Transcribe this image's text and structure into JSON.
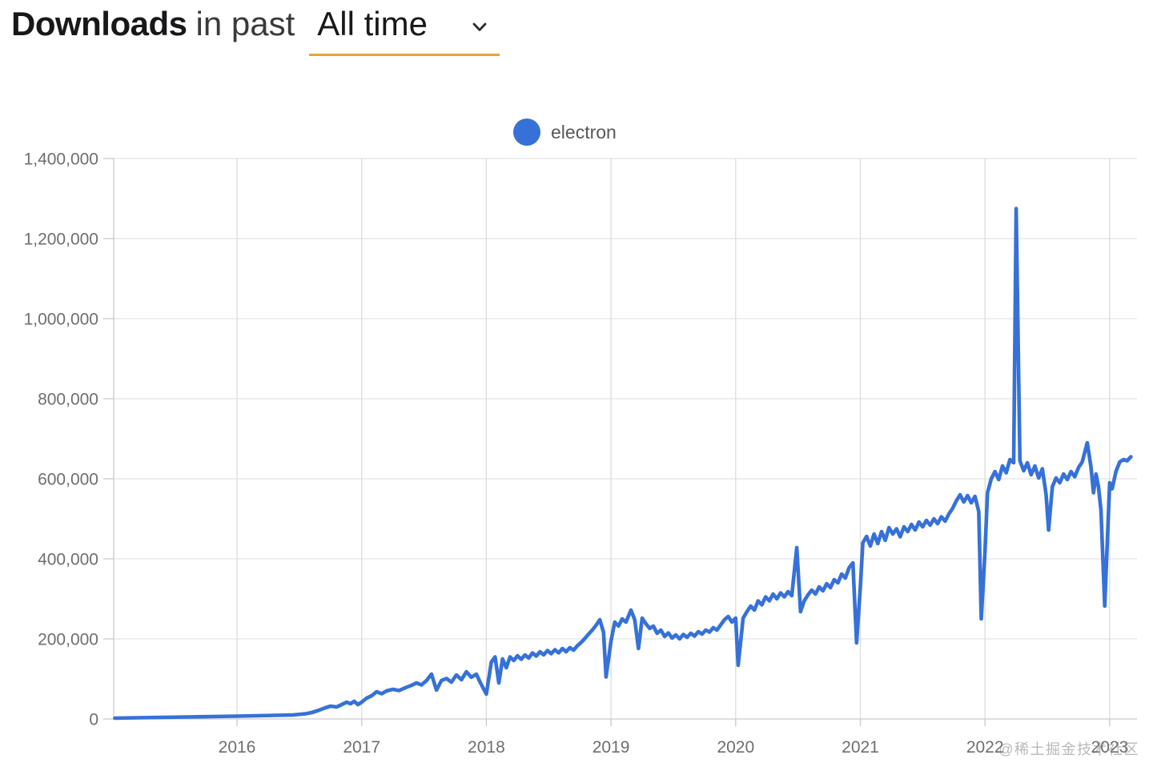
{
  "header": {
    "title_bold": "Downloads",
    "title_mid": "in past",
    "range_value": "All time",
    "underline_color": "#e7a33c"
  },
  "legend": {
    "items": [
      {
        "label": "electron",
        "color": "#3671d8"
      }
    ]
  },
  "watermark": {
    "text": "@稀土掘金技术社区"
  },
  "chart_data": {
    "type": "line",
    "title": "Downloads in past All time",
    "xlabel": "",
    "ylabel": "",
    "x_unit": "year",
    "y_unit": "downloads",
    "xlim": [
      2015.0,
      2023.25
    ],
    "ylim": [
      0,
      1400000
    ],
    "grid": true,
    "legend_position": "top-center",
    "x_ticks": [
      {
        "value": 2016,
        "label": "2016"
      },
      {
        "value": 2017,
        "label": "2017"
      },
      {
        "value": 2018,
        "label": "2018"
      },
      {
        "value": 2019,
        "label": "2019"
      },
      {
        "value": 2020,
        "label": "2020"
      },
      {
        "value": 2021,
        "label": "2021"
      },
      {
        "value": 2022,
        "label": "2022"
      },
      {
        "value": 2023,
        "label": "2023"
      }
    ],
    "y_ticks": [
      {
        "value": 0,
        "label": "0"
      },
      {
        "value": 200000,
        "label": "200,000"
      },
      {
        "value": 400000,
        "label": "400,000"
      },
      {
        "value": 600000,
        "label": "600,000"
      },
      {
        "value": 800000,
        "label": "800,000"
      },
      {
        "value": 1000000,
        "label": "1,000,000"
      },
      {
        "value": 1200000,
        "label": "1,200,000"
      },
      {
        "value": 1400000,
        "label": "1,400,000"
      }
    ],
    "series": [
      {
        "name": "electron",
        "color": "#3671d8",
        "points": [
          [
            2015.02,
            2000
          ],
          [
            2015.2,
            3000
          ],
          [
            2015.4,
            4000
          ],
          [
            2015.6,
            5000
          ],
          [
            2015.8,
            6000
          ],
          [
            2016.0,
            7000
          ],
          [
            2016.15,
            8000
          ],
          [
            2016.3,
            9000
          ],
          [
            2016.45,
            10000
          ],
          [
            2016.55,
            13000
          ],
          [
            2016.6,
            16000
          ],
          [
            2016.65,
            21000
          ],
          [
            2016.7,
            27000
          ],
          [
            2016.75,
            32000
          ],
          [
            2016.8,
            30000
          ],
          [
            2016.84,
            36000
          ],
          [
            2016.88,
            42000
          ],
          [
            2016.91,
            38000
          ],
          [
            2016.94,
            44000
          ],
          [
            2016.97,
            36000
          ],
          [
            2017.0,
            42000
          ],
          [
            2017.04,
            52000
          ],
          [
            2017.08,
            58000
          ],
          [
            2017.12,
            68000
          ],
          [
            2017.16,
            63000
          ],
          [
            2017.2,
            70000
          ],
          [
            2017.25,
            74000
          ],
          [
            2017.3,
            71000
          ],
          [
            2017.35,
            78000
          ],
          [
            2017.4,
            84000
          ],
          [
            2017.44,
            90000
          ],
          [
            2017.48,
            85000
          ],
          [
            2017.52,
            96000
          ],
          [
            2017.56,
            112000
          ],
          [
            2017.6,
            72000
          ],
          [
            2017.64,
            96000
          ],
          [
            2017.68,
            101000
          ],
          [
            2017.72,
            92000
          ],
          [
            2017.76,
            110000
          ],
          [
            2017.8,
            98000
          ],
          [
            2017.84,
            118000
          ],
          [
            2017.88,
            104000
          ],
          [
            2017.92,
            112000
          ],
          [
            2017.95,
            92000
          ],
          [
            2018.0,
            62000
          ],
          [
            2018.04,
            142000
          ],
          [
            2018.07,
            155000
          ],
          [
            2018.1,
            90000
          ],
          [
            2018.13,
            150000
          ],
          [
            2018.16,
            128000
          ],
          [
            2018.19,
            155000
          ],
          [
            2018.22,
            146000
          ],
          [
            2018.25,
            158000
          ],
          [
            2018.28,
            149000
          ],
          [
            2018.31,
            160000
          ],
          [
            2018.34,
            152000
          ],
          [
            2018.37,
            165000
          ],
          [
            2018.4,
            157000
          ],
          [
            2018.43,
            168000
          ],
          [
            2018.46,
            160000
          ],
          [
            2018.49,
            171000
          ],
          [
            2018.52,
            163000
          ],
          [
            2018.55,
            173000
          ],
          [
            2018.58,
            165000
          ],
          [
            2018.61,
            176000
          ],
          [
            2018.64,
            168000
          ],
          [
            2018.67,
            178000
          ],
          [
            2018.7,
            172000
          ],
          [
            2018.73,
            183000
          ],
          [
            2018.76,
            191000
          ],
          [
            2018.79,
            201000
          ],
          [
            2018.82,
            212000
          ],
          [
            2018.85,
            222000
          ],
          [
            2018.88,
            234000
          ],
          [
            2018.91,
            248000
          ],
          [
            2018.94,
            216000
          ],
          [
            2018.96,
            105000
          ],
          [
            2019.0,
            195000
          ],
          [
            2019.03,
            242000
          ],
          [
            2019.06,
            232000
          ],
          [
            2019.09,
            250000
          ],
          [
            2019.12,
            242000
          ],
          [
            2019.16,
            272000
          ],
          [
            2019.19,
            248000
          ],
          [
            2019.22,
            176000
          ],
          [
            2019.25,
            252000
          ],
          [
            2019.28,
            238000
          ],
          [
            2019.31,
            226000
          ],
          [
            2019.34,
            232000
          ],
          [
            2019.37,
            214000
          ],
          [
            2019.4,
            222000
          ],
          [
            2019.43,
            206000
          ],
          [
            2019.46,
            215000
          ],
          [
            2019.49,
            202000
          ],
          [
            2019.52,
            210000
          ],
          [
            2019.55,
            200000
          ],
          [
            2019.58,
            211000
          ],
          [
            2019.61,
            204000
          ],
          [
            2019.64,
            214000
          ],
          [
            2019.67,
            207000
          ],
          [
            2019.7,
            218000
          ],
          [
            2019.73,
            212000
          ],
          [
            2019.76,
            222000
          ],
          [
            2019.79,
            217000
          ],
          [
            2019.82,
            228000
          ],
          [
            2019.85,
            222000
          ],
          [
            2019.88,
            235000
          ],
          [
            2019.91,
            248000
          ],
          [
            2019.94,
            256000
          ],
          [
            2019.97,
            242000
          ],
          [
            2020.0,
            252000
          ],
          [
            2020.02,
            134000
          ],
          [
            2020.06,
            252000
          ],
          [
            2020.09,
            268000
          ],
          [
            2020.12,
            282000
          ],
          [
            2020.15,
            272000
          ],
          [
            2020.18,
            295000
          ],
          [
            2020.21,
            285000
          ],
          [
            2020.24,
            305000
          ],
          [
            2020.27,
            295000
          ],
          [
            2020.3,
            312000
          ],
          [
            2020.33,
            300000
          ],
          [
            2020.36,
            315000
          ],
          [
            2020.39,
            305000
          ],
          [
            2020.42,
            318000
          ],
          [
            2020.45,
            308000
          ],
          [
            2020.49,
            428000
          ],
          [
            2020.52,
            268000
          ],
          [
            2020.55,
            295000
          ],
          [
            2020.58,
            310000
          ],
          [
            2020.61,
            322000
          ],
          [
            2020.64,
            312000
          ],
          [
            2020.67,
            330000
          ],
          [
            2020.7,
            320000
          ],
          [
            2020.73,
            338000
          ],
          [
            2020.76,
            328000
          ],
          [
            2020.79,
            348000
          ],
          [
            2020.82,
            340000
          ],
          [
            2020.85,
            362000
          ],
          [
            2020.88,
            352000
          ],
          [
            2020.91,
            378000
          ],
          [
            2020.94,
            390000
          ],
          [
            2020.97,
            190000
          ],
          [
            2021.0,
            330000
          ],
          [
            2021.02,
            440000
          ],
          [
            2021.05,
            456000
          ],
          [
            2021.08,
            432000
          ],
          [
            2021.11,
            462000
          ],
          [
            2021.14,
            438000
          ],
          [
            2021.17,
            468000
          ],
          [
            2021.2,
            446000
          ],
          [
            2021.23,
            478000
          ],
          [
            2021.26,
            462000
          ],
          [
            2021.29,
            475000
          ],
          [
            2021.32,
            455000
          ],
          [
            2021.35,
            480000
          ],
          [
            2021.38,
            468000
          ],
          [
            2021.41,
            486000
          ],
          [
            2021.44,
            472000
          ],
          [
            2021.47,
            492000
          ],
          [
            2021.5,
            480000
          ],
          [
            2021.53,
            496000
          ],
          [
            2021.56,
            484000
          ],
          [
            2021.59,
            500000
          ],
          [
            2021.62,
            488000
          ],
          [
            2021.65,
            505000
          ],
          [
            2021.68,
            494000
          ],
          [
            2021.71,
            512000
          ],
          [
            2021.74,
            526000
          ],
          [
            2021.77,
            545000
          ],
          [
            2021.8,
            560000
          ],
          [
            2021.83,
            542000
          ],
          [
            2021.86,
            558000
          ],
          [
            2021.89,
            540000
          ],
          [
            2021.92,
            556000
          ],
          [
            2021.95,
            518000
          ],
          [
            2021.97,
            250000
          ],
          [
            2022.0,
            420000
          ],
          [
            2022.02,
            565000
          ],
          [
            2022.05,
            600000
          ],
          [
            2022.08,
            618000
          ],
          [
            2022.11,
            598000
          ],
          [
            2022.14,
            632000
          ],
          [
            2022.17,
            615000
          ],
          [
            2022.2,
            648000
          ],
          [
            2022.23,
            640000
          ],
          [
            2022.25,
            1275000
          ],
          [
            2022.28,
            645000
          ],
          [
            2022.31,
            620000
          ],
          [
            2022.34,
            640000
          ],
          [
            2022.37,
            610000
          ],
          [
            2022.4,
            632000
          ],
          [
            2022.43,
            602000
          ],
          [
            2022.46,
            625000
          ],
          [
            2022.49,
            560000
          ],
          [
            2022.51,
            472000
          ],
          [
            2022.54,
            580000
          ],
          [
            2022.57,
            602000
          ],
          [
            2022.6,
            590000
          ],
          [
            2022.63,
            612000
          ],
          [
            2022.66,
            598000
          ],
          [
            2022.69,
            618000
          ],
          [
            2022.72,
            605000
          ],
          [
            2022.75,
            628000
          ],
          [
            2022.78,
            642000
          ],
          [
            2022.82,
            690000
          ],
          [
            2022.85,
            630000
          ],
          [
            2022.87,
            565000
          ],
          [
            2022.89,
            612000
          ],
          [
            2022.91,
            580000
          ],
          [
            2022.93,
            522000
          ],
          [
            2022.96,
            282000
          ],
          [
            2023.0,
            590000
          ],
          [
            2023.02,
            575000
          ],
          [
            2023.05,
            618000
          ],
          [
            2023.08,
            642000
          ],
          [
            2023.11,
            648000
          ],
          [
            2023.14,
            645000
          ],
          [
            2023.17,
            655000
          ]
        ]
      }
    ]
  }
}
